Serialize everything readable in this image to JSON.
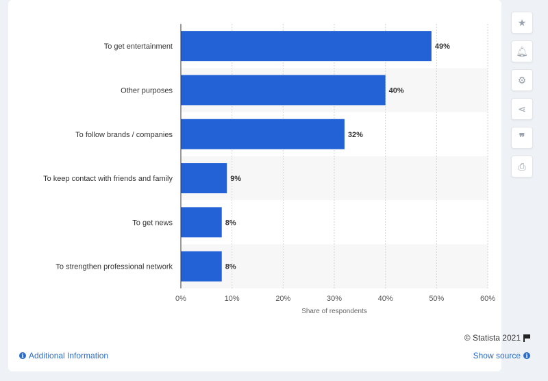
{
  "chart_data": {
    "type": "bar",
    "orientation": "horizontal",
    "categories": [
      "To get entertainment",
      "Other purposes",
      "To follow brands / companies",
      "To keep contact with friends and family",
      "To get news",
      "To strengthen professional network"
    ],
    "values": [
      49,
      40,
      32,
      9,
      8,
      8
    ],
    "data_labels": [
      "49%",
      "40%",
      "32%",
      "9%",
      "8%",
      "8%"
    ],
    "xlabel": "Share of respondents",
    "xlim": [
      0,
      60
    ],
    "x_ticks": [
      0,
      10,
      20,
      30,
      40,
      50,
      60
    ],
    "x_tick_labels": [
      "0%",
      "10%",
      "20%",
      "30%",
      "40%",
      "50%",
      "60%"
    ],
    "grid": true,
    "bar_color": "#2362d6"
  },
  "footer": {
    "credit": "© Statista 2021",
    "additional_info": "Additional Information",
    "show_source": "Show source"
  },
  "sidebar": {
    "icons": [
      "star-icon",
      "bell-icon",
      "gear-icon",
      "share-icon",
      "quote-icon",
      "print-icon"
    ]
  }
}
